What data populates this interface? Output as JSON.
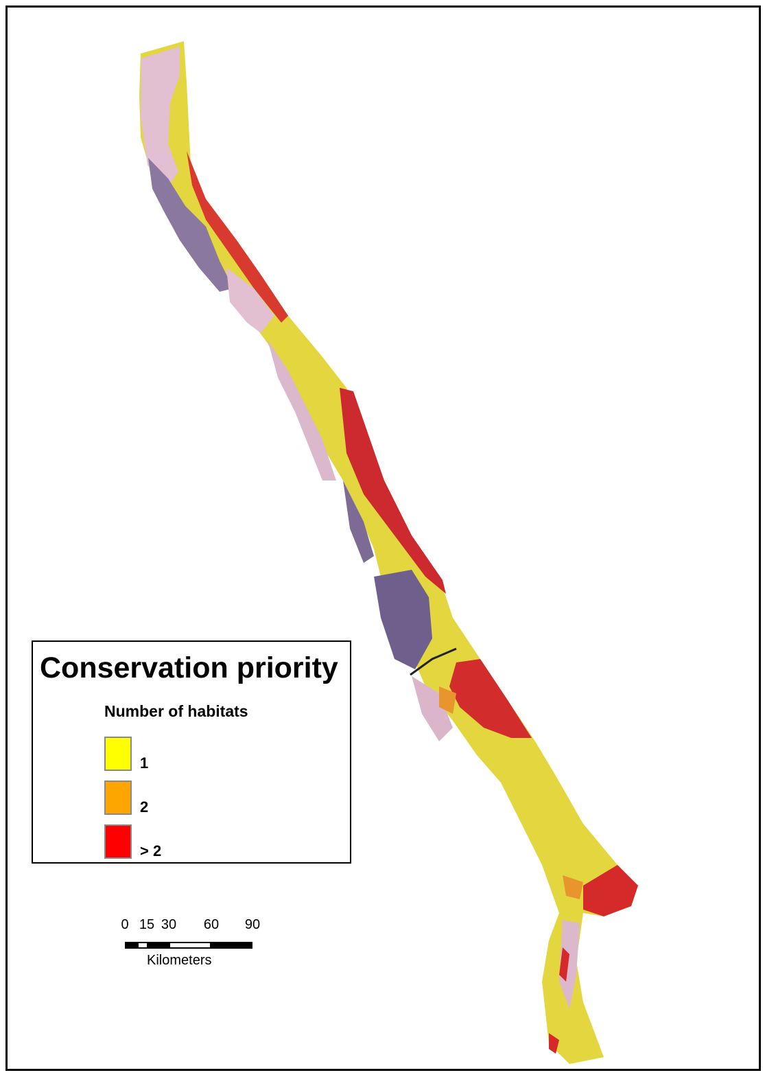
{
  "legend": {
    "title": "Conservation priority",
    "subtitle": "Number of habitats",
    "items": [
      {
        "label": "1",
        "color": "#ffff00"
      },
      {
        "label": "2",
        "color": "#ffa500"
      },
      {
        "label": "> 2",
        "color": "#ff0000"
      }
    ]
  },
  "scale_bar": {
    "ticks": [
      "0",
      "15",
      "30",
      "60",
      "90"
    ],
    "unit": "Kilometers"
  },
  "map_colors": {
    "yellow": "#e6dc3c",
    "red": "#d42a2a",
    "orange": "#e8952e",
    "pink": "#e7c3d6",
    "purple": "#7b6a93"
  }
}
